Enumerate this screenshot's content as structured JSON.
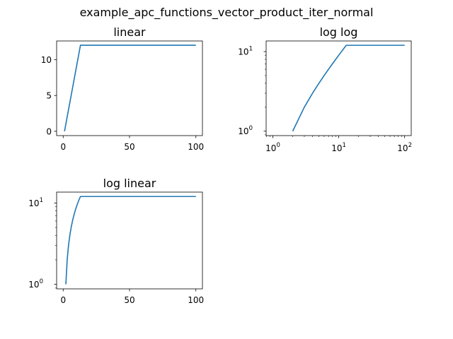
{
  "figure": {
    "suptitle": "example_apc_functions_vector_product_iter_normal"
  },
  "colors": {
    "line": "#1f77b4",
    "axes": "#000000",
    "background": "#ffffff"
  },
  "chart_data": [
    {
      "type": "line",
      "title": "linear",
      "xscale": "linear",
      "yscale": "linear",
      "xlim": [
        -4.95,
        104.95
      ],
      "ylim": [
        -0.6,
        12.6
      ],
      "xticks": [
        0,
        50,
        100
      ],
      "xtick_labels": [
        "0",
        "50",
        "100"
      ],
      "yticks": [
        0,
        5,
        10
      ],
      "ytick_labels": [
        "0",
        "5",
        "10"
      ],
      "x": [
        1,
        2,
        3,
        4,
        5,
        6,
        7,
        8,
        9,
        10,
        11,
        12,
        13,
        100
      ],
      "y": [
        0,
        1,
        2,
        3,
        4,
        5,
        6,
        7,
        8,
        9,
        10,
        11,
        12,
        12
      ]
    },
    {
      "type": "line",
      "title": "log log",
      "xscale": "log",
      "yscale": "log",
      "xlim": [
        0.79,
        126
      ],
      "ylim": [
        0.88,
        13.6
      ],
      "xticks": [
        1,
        10,
        100
      ],
      "xtick_labels": [
        [
          "10",
          "0"
        ],
        [
          "10",
          "1"
        ],
        [
          "10",
          "2"
        ]
      ],
      "yticks": [
        1,
        10
      ],
      "ytick_labels": [
        [
          "10",
          "0"
        ],
        [
          "10",
          "1"
        ]
      ],
      "x": [
        2,
        3,
        4,
        5,
        6,
        7,
        8,
        9,
        10,
        11,
        12,
        13,
        100
      ],
      "y": [
        1,
        2,
        3,
        4,
        5,
        6,
        7,
        8,
        9,
        10,
        11,
        12,
        12
      ]
    },
    {
      "type": "line",
      "title": "log linear",
      "xscale": "linear",
      "yscale": "log",
      "xlim": [
        -4.95,
        104.95
      ],
      "ylim": [
        0.88,
        13.6
      ],
      "xticks": [
        0,
        50,
        100
      ],
      "xtick_labels": [
        "0",
        "50",
        "100"
      ],
      "yticks": [
        1,
        10
      ],
      "ytick_labels": [
        [
          "10",
          "0"
        ],
        [
          "10",
          "1"
        ]
      ],
      "x": [
        2,
        3,
        4,
        5,
        6,
        7,
        8,
        9,
        10,
        11,
        12,
        13,
        100
      ],
      "y": [
        1,
        2,
        3,
        4,
        5,
        6,
        7,
        8,
        9,
        10,
        11,
        12,
        12
      ]
    }
  ]
}
